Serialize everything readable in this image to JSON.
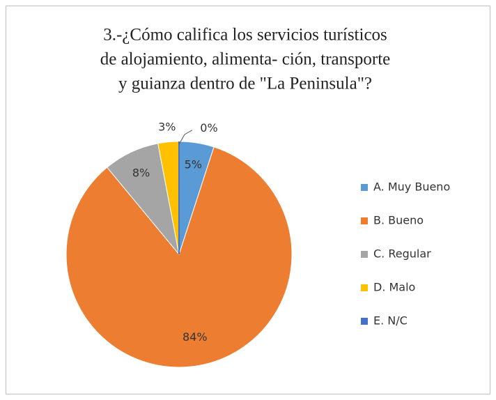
{
  "chart_data": {
    "type": "pie",
    "title": [
      "3.-¿Cómo califica los servicios turísticos",
      "de alojamiento, alimenta- ción, transporte",
      "y guianza dentro de \"La Peninsula\"?"
    ],
    "categories": [
      "A. Muy Bueno",
      "B. Bueno",
      "C. Regular",
      "D. Malo",
      "E. N/C"
    ],
    "values": [
      5,
      84,
      8,
      3,
      0
    ],
    "value_labels": [
      "5%",
      "84%",
      "8%",
      "3%",
      "0%"
    ],
    "colors": [
      "#5b9bd5",
      "#ed7d31",
      "#a5a5a5",
      "#ffc000",
      "#4472c4"
    ],
    "legend": "right"
  }
}
